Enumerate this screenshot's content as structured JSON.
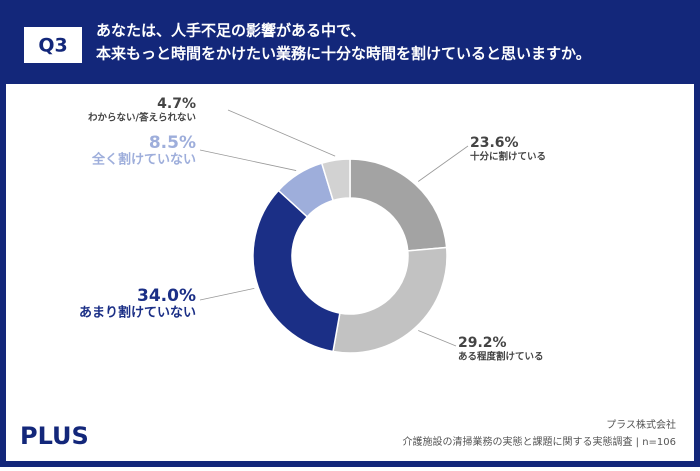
{
  "question_label": "Q3",
  "logo": "PLUS",
  "source": [
    "プラス株式会社",
    "介護施設の清掃業務の実態と課題に関する実態調査 | n=106"
  ],
  "chart_data": {
    "type": "donut",
    "title": [
      "あなたは、人手不足の影響がある中で、",
      "本来もっと時間をかけたい業務に十分な時間を割けていると思いますか。"
    ],
    "categories": [
      "十分に割けている",
      "ある程度割けている",
      "あまり割けていない",
      "全く割けていない",
      "わからない/答えられない"
    ],
    "values": [
      23.6,
      29.2,
      34.0,
      8.5,
      4.7
    ],
    "value_labels": [
      "23.6%",
      "29.2%",
      "34.0%",
      "8.5%",
      "4.7%"
    ],
    "colors": [
      "#a3a3a3",
      "#c2c2c2",
      "#1b2f86",
      "#9eaedb",
      "#d2d2d2"
    ]
  }
}
